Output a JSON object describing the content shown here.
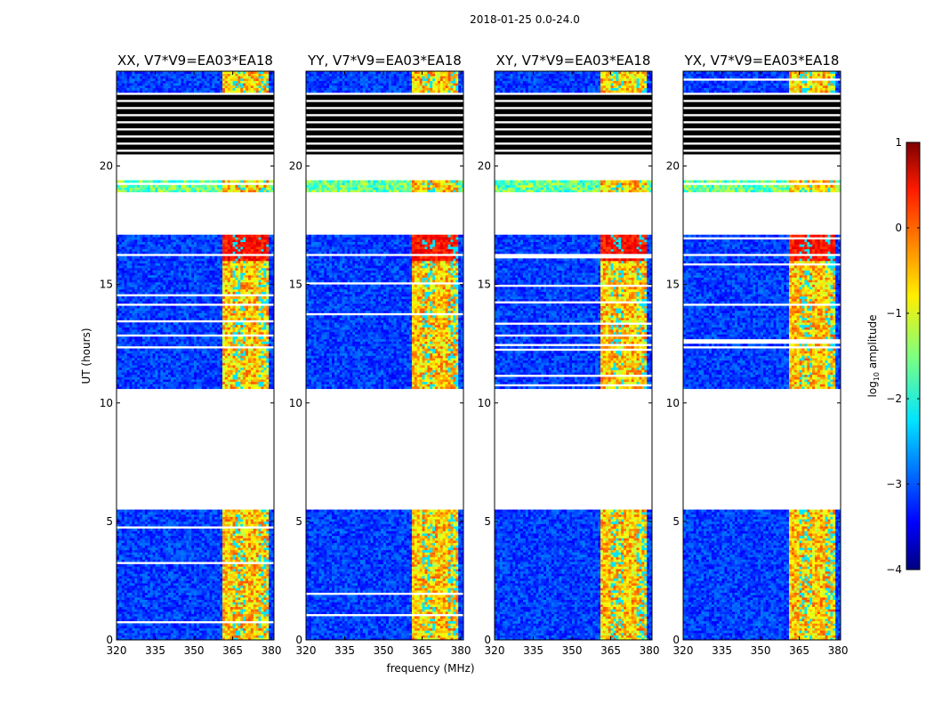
{
  "chart_data": {
    "type": "heatmap",
    "suptitle": "2018-01-25 0.0-24.0",
    "xlabel": "frequency (MHz)",
    "ylabel": "UT (hours)",
    "xlim": [
      320,
      381
    ],
    "ylim": [
      0,
      24
    ],
    "xticks": [
      320,
      335,
      350,
      365,
      380
    ],
    "yticks": [
      0,
      5,
      10,
      15,
      20
    ],
    "panels": [
      {
        "title": "XX, V7*V9=EA03*EA18",
        "pol": "XX"
      },
      {
        "title": "YY, V7*V9=EA03*EA18",
        "pol": "YY"
      },
      {
        "title": "XY, V7*V9=EA03*EA18",
        "pol": "XY"
      },
      {
        "title": "YX, V7*V9=EA03*EA18",
        "pol": "YX"
      }
    ],
    "data_time_ranges_hours": [
      [
        0,
        5.5
      ],
      [
        10.6,
        16.2
      ],
      [
        16.3,
        17.1
      ],
      [
        18.9,
        19.4
      ],
      [
        20.5,
        23.1
      ],
      [
        23.1,
        24
      ]
    ],
    "flagged_time_ranges_hours": [
      [
        20.5,
        23.1
      ]
    ],
    "signal_band_MHz": [
      360.6,
      379.3
    ],
    "colorbar": {
      "label": "log10 amplitude",
      "label_main": "log",
      "label_sub": "10",
      "label_rest": " amplitude",
      "min": -4,
      "max": 1,
      "ticks": [
        1,
        0,
        -1,
        -2,
        -3,
        -4
      ],
      "colormap": "jet"
    }
  }
}
